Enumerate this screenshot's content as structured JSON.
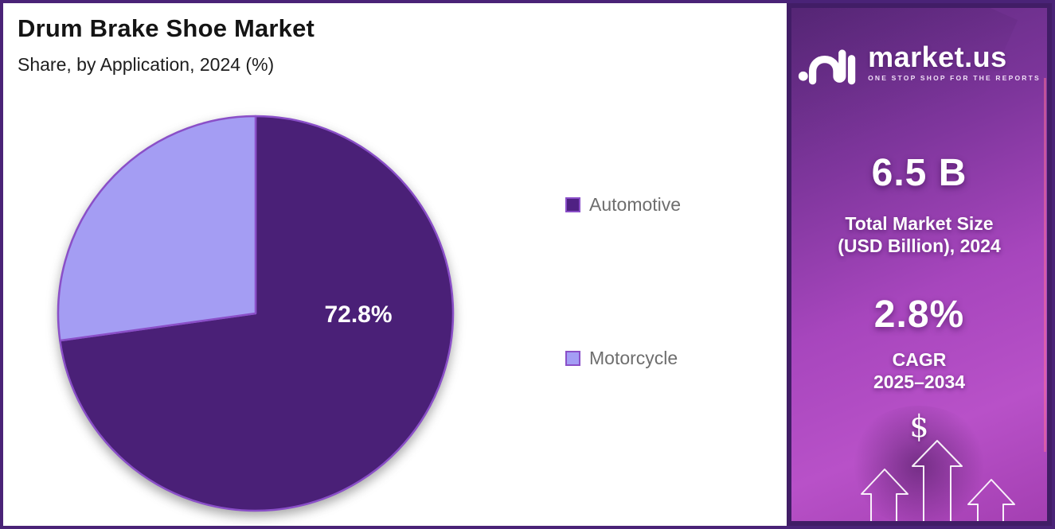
{
  "chart_data": {
    "type": "pie",
    "title": "Drum Brake Shoe Market",
    "subtitle": "Share, by  Application, 2024 (%)",
    "unit": "%",
    "slices": [
      {
        "label": "Automotive",
        "value": 72.8,
        "color": "#4A2077",
        "data_label": "72.8%"
      },
      {
        "label": "Motorcycle",
        "value": 27.2,
        "color": "#A49DF3",
        "data_label": null
      }
    ],
    "legend_colors": {
      "Automotive": "#4F2183",
      "Motorcycle": "#A49DF5"
    },
    "start_angle_deg": 0,
    "direction": "clockwise",
    "stroke_color": "#8A4FC8",
    "legend_position": "right",
    "label_angle_deg": 90,
    "label_radius_frac": 0.52,
    "label_color": "#FFFFFF"
  },
  "sidebar": {
    "logo": {
      "brand": "market.us",
      "tagline": "ONE STOP SHOP FOR THE REPORTS",
      "icon": "marketus-waveform-icon"
    },
    "market_size": {
      "value": "6.5 B",
      "label_line1": "Total Market Size",
      "label_line2": "(USD Billion), 2024"
    },
    "cagr": {
      "value": "2.8%",
      "label_line1": "CAGR",
      "label_line2": "2025–2034"
    },
    "dollar_symbol": "$",
    "growth_icon": "dollar-up-arrows-icon",
    "colors": {
      "frame": "#411D66",
      "panel_gradient_start": "#5E2B80",
      "panel_gradient_end": "#A43FB2",
      "page_border": "#4A2377"
    }
  }
}
